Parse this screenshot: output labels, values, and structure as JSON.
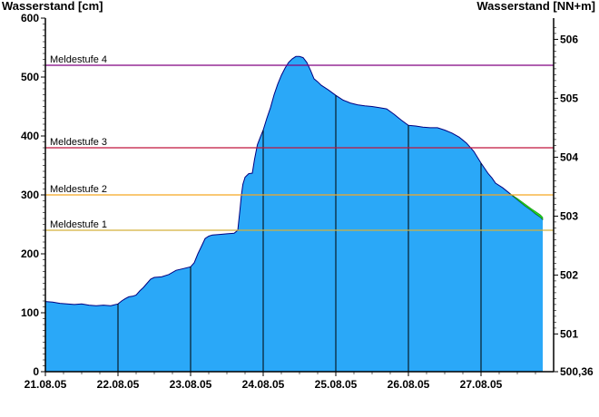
{
  "chart_data": {
    "type": "area",
    "title": "",
    "ylabel_left": "Wasserstand [cm]",
    "ylabel_right": "Wasserstand [NN+m]",
    "xlabel": "",
    "x_ticks": [
      "21.08.05",
      "22.08.05",
      "23.08.05",
      "24.08.05",
      "25.08.05",
      "26.08.05",
      "27.08.05"
    ],
    "y_left_ticks": [
      0,
      100,
      200,
      300,
      400,
      500,
      600
    ],
    "y_left_range": [
      0,
      600
    ],
    "y_right_ticks": [
      "500,36",
      "501",
      "502",
      "503",
      "504",
      "505",
      "506"
    ],
    "y_right_values": [
      500.36,
      501,
      502,
      503,
      504,
      505,
      506
    ],
    "y_right_range": [
      500.36,
      506.36
    ],
    "x_range_days": [
      0,
      7
    ],
    "grid": "vertical lines at day boundaries",
    "colors": {
      "area_fill": "#2aa8f8",
      "area_outline": "#000080",
      "forecast_fill": "#22dd22",
      "meldestufe_1": "#d4b03a",
      "meldestufe_2": "#f5a623",
      "meldestufe_3": "#c0143c",
      "meldestufe_4": "#800080",
      "gridline": "#000000"
    },
    "thresholds": [
      {
        "label": "Meldestufe 1",
        "value": 240,
        "color": "#d4b03a"
      },
      {
        "label": "Meldestufe 2",
        "value": 300,
        "color": "#f5a623"
      },
      {
        "label": "Meldestufe 3",
        "value": 380,
        "color": "#c0143c"
      },
      {
        "label": "Meldestufe 4",
        "value": 520,
        "color": "#800080"
      }
    ],
    "series": [
      {
        "points": [
          [
            0.0,
            119
          ],
          [
            0.1,
            118
          ],
          [
            0.2,
            116
          ],
          [
            0.3,
            115
          ],
          [
            0.4,
            114
          ],
          [
            0.5,
            115
          ],
          [
            0.6,
            113
          ],
          [
            0.7,
            112
          ],
          [
            0.8,
            113
          ],
          [
            0.9,
            112
          ],
          [
            1.0,
            115
          ],
          [
            1.05,
            120
          ],
          [
            1.1,
            124
          ],
          [
            1.15,
            127
          ],
          [
            1.2,
            128
          ],
          [
            1.25,
            130
          ],
          [
            1.3,
            137
          ],
          [
            1.35,
            143
          ],
          [
            1.4,
            150
          ],
          [
            1.45,
            157
          ],
          [
            1.5,
            160
          ],
          [
            1.6,
            161
          ],
          [
            1.7,
            165
          ],
          [
            1.8,
            172
          ],
          [
            1.9,
            175
          ],
          [
            2.0,
            178
          ],
          [
            2.05,
            185
          ],
          [
            2.1,
            200
          ],
          [
            2.15,
            213
          ],
          [
            2.2,
            226
          ],
          [
            2.25,
            230
          ],
          [
            2.3,
            232
          ],
          [
            2.4,
            233
          ],
          [
            2.5,
            234
          ],
          [
            2.6,
            235
          ],
          [
            2.65,
            240
          ],
          [
            2.68,
            275
          ],
          [
            2.7,
            300
          ],
          [
            2.72,
            318
          ],
          [
            2.75,
            330
          ],
          [
            2.8,
            336
          ],
          [
            2.85,
            337
          ],
          [
            2.88,
            360
          ],
          [
            2.92,
            385
          ],
          [
            2.96,
            398
          ],
          [
            3.0,
            410
          ],
          [
            3.05,
            430
          ],
          [
            3.1,
            448
          ],
          [
            3.15,
            470
          ],
          [
            3.2,
            488
          ],
          [
            3.25,
            503
          ],
          [
            3.3,
            515
          ],
          [
            3.35,
            525
          ],
          [
            3.4,
            531
          ],
          [
            3.45,
            535
          ],
          [
            3.5,
            535
          ],
          [
            3.55,
            533
          ],
          [
            3.6,
            525
          ],
          [
            3.65,
            512
          ],
          [
            3.7,
            497
          ],
          [
            3.75,
            492
          ],
          [
            3.8,
            486
          ],
          [
            3.9,
            478
          ],
          [
            4.0,
            469
          ],
          [
            4.1,
            461
          ],
          [
            4.2,
            456
          ],
          [
            4.3,
            453
          ],
          [
            4.4,
            451
          ],
          [
            4.5,
            450
          ],
          [
            4.6,
            448
          ],
          [
            4.7,
            446
          ],
          [
            4.8,
            437
          ],
          [
            4.9,
            427
          ],
          [
            5.0,
            418
          ],
          [
            5.1,
            417
          ],
          [
            5.2,
            415
          ],
          [
            5.3,
            414
          ],
          [
            5.4,
            414
          ],
          [
            5.5,
            410
          ],
          [
            5.6,
            405
          ],
          [
            5.7,
            398
          ],
          [
            5.8,
            388
          ],
          [
            5.9,
            374
          ],
          [
            6.0,
            354
          ],
          [
            6.1,
            336
          ],
          [
            6.15,
            329
          ],
          [
            6.2,
            320
          ],
          [
            6.3,
            312
          ],
          [
            6.4,
            302
          ],
          [
            6.5,
            292
          ],
          [
            6.6,
            282
          ],
          [
            6.7,
            273
          ],
          [
            6.75,
            268
          ],
          [
            6.82,
            262
          ],
          [
            6.85,
            258
          ]
        ]
      },
      {
        "points": [
          [
            6.4,
            302
          ],
          [
            6.5,
            294
          ],
          [
            6.6,
            285
          ],
          [
            6.7,
            276
          ],
          [
            6.75,
            272
          ],
          [
            6.82,
            266
          ],
          [
            6.85,
            262
          ]
        ]
      }
    ]
  }
}
